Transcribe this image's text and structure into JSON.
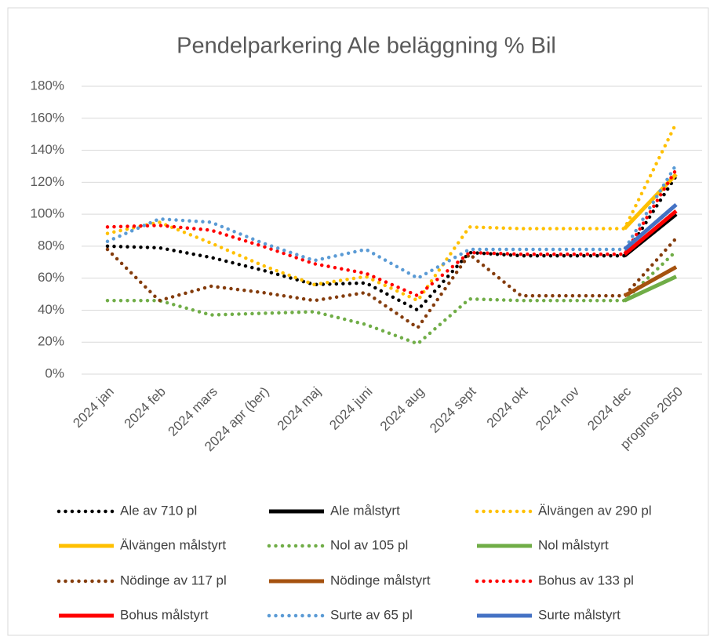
{
  "chart_data": {
    "type": "line",
    "title": "Pendelparkering  Ale beläggning % Bil",
    "categories": [
      "2024 jan",
      "2024 feb",
      "2024 mars",
      "2024 apr (ber)",
      "2024 maj",
      "2024 juni",
      "2024 aug",
      "2024 sept",
      "2024 okt",
      "2024 nov",
      "2024 dec",
      "prognos 2050"
    ],
    "ylim": [
      0,
      180
    ],
    "yticks": [
      {
        "value": 0,
        "label": "0%"
      },
      {
        "value": 20,
        "label": "20%"
      },
      {
        "value": 40,
        "label": "40%"
      },
      {
        "value": 60,
        "label": "60%"
      },
      {
        "value": 80,
        "label": "80%"
      },
      {
        "value": 100,
        "label": "100%"
      },
      {
        "value": 120,
        "label": "120%"
      },
      {
        "value": 140,
        "label": "140%"
      },
      {
        "value": 160,
        "label": "160%"
      },
      {
        "value": 180,
        "label": "180%"
      }
    ],
    "grid": true,
    "legend": "bottom",
    "series": [
      {
        "name": "Ale av 710 pl",
        "color": "#000000",
        "style": "dotted",
        "values": [
          80,
          79,
          73,
          65,
          56,
          57,
          40,
          76,
          74,
          74,
          74,
          124
        ]
      },
      {
        "name": "Ale målstyrt",
        "color": "#000000",
        "style": "solid",
        "values": [
          null,
          null,
          null,
          null,
          null,
          null,
          null,
          null,
          null,
          null,
          74,
          100
        ]
      },
      {
        "name": "Älvängen av 290 pl",
        "color": "#ffc000",
        "style": "dotted",
        "values": [
          88,
          95,
          82,
          68,
          56,
          61,
          46,
          92,
          91,
          91,
          91,
          157
        ]
      },
      {
        "name": "Älvängen målstyrt",
        "color": "#ffc000",
        "style": "solid",
        "values": [
          null,
          null,
          null,
          null,
          null,
          null,
          null,
          null,
          null,
          null,
          91,
          125
        ]
      },
      {
        "name": "Nol av 105 pl",
        "color": "#70ad47",
        "style": "dotted",
        "values": [
          46,
          46,
          37,
          38,
          39,
          31,
          19,
          47,
          46,
          46,
          46,
          77
        ]
      },
      {
        "name": "Nol målstyrt",
        "color": "#70ad47",
        "style": "solid",
        "values": [
          null,
          null,
          null,
          null,
          null,
          null,
          null,
          null,
          null,
          null,
          46,
          61
        ]
      },
      {
        "name": "Nödinge av 117 pl",
        "color": "#843c0c",
        "style": "dotted",
        "values": [
          78,
          46,
          55,
          51,
          46,
          51,
          29,
          75,
          49,
          49,
          49,
          85
        ]
      },
      {
        "name": "Nödinge målstyrt",
        "color": "#a5520f",
        "style": "solid",
        "values": [
          null,
          null,
          null,
          null,
          null,
          null,
          null,
          null,
          null,
          null,
          49,
          67
        ]
      },
      {
        "name": "Bohus av 133 pl",
        "color": "#ff0000",
        "style": "dotted",
        "values": [
          92,
          93,
          90,
          80,
          69,
          63,
          49,
          76,
          75,
          75,
          75,
          128
        ]
      },
      {
        "name": "Bohus målstyrt",
        "color": "#ff0000",
        "style": "solid",
        "values": [
          null,
          null,
          null,
          null,
          null,
          null,
          null,
          null,
          null,
          null,
          75,
          102
        ]
      },
      {
        "name": "Surte av 65 pl",
        "color": "#5b9bd5",
        "style": "dotted",
        "values": [
          83,
          97,
          95,
          82,
          71,
          78,
          60,
          78,
          78,
          78,
          78,
          131
        ]
      },
      {
        "name": "Surte målstyrt",
        "color": "#4472c4",
        "style": "solid",
        "values": [
          null,
          null,
          null,
          null,
          null,
          null,
          null,
          null,
          null,
          null,
          78,
          106
        ]
      }
    ]
  }
}
